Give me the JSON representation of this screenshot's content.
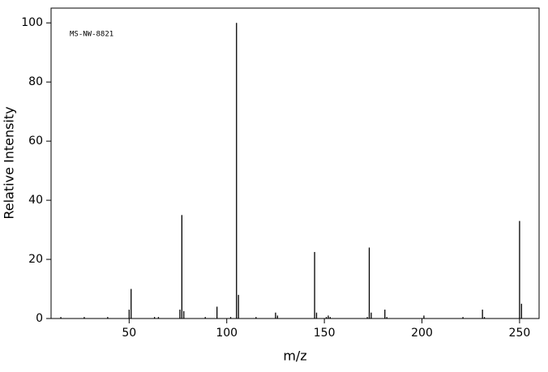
{
  "chart_data": {
    "type": "stem",
    "annotation": "MS-NW-8821",
    "x_label": "m/z",
    "y_label": "Relative Intensity",
    "x": [
      15,
      27,
      39,
      50,
      51,
      63,
      65,
      76,
      77,
      78,
      89,
      95,
      102,
      105,
      106,
      115,
      125,
      126,
      145,
      146,
      151,
      152,
      153,
      172,
      173,
      174,
      181,
      182,
      201,
      221,
      231,
      232,
      250,
      251
    ],
    "values": [
      0.5,
      0.5,
      0.5,
      3,
      10,
      0.5,
      0.5,
      3,
      35,
      2.5,
      0.5,
      4,
      0.5,
      100,
      8,
      0.5,
      2,
      1,
      22.5,
      2,
      0.5,
      1,
      0.5,
      0.5,
      24,
      2,
      3,
      0.5,
      1,
      0.5,
      3,
      0.5,
      33,
      5
    ],
    "color": "#000000",
    "xlim": [
      10,
      260
    ],
    "xticks": [
      50,
      100,
      150,
      200,
      250
    ],
    "ylim": [
      0,
      105
    ],
    "yticks": [
      0,
      20,
      40,
      60,
      80,
      100
    ]
  }
}
